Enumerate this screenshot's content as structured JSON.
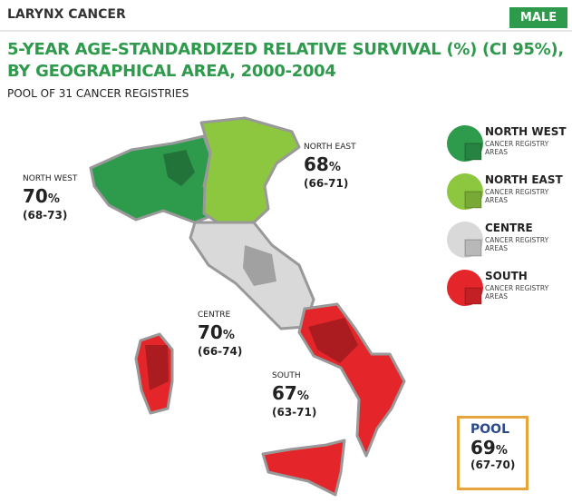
{
  "header": {
    "title": "LARYNX CANCER",
    "badge": "MALE"
  },
  "title_lines": [
    "5-YEAR AGE-STANDARDIZED RELATIVE SURVIVAL (%) (CI 95%),",
    "BY GEOGRAPHICAL AREA, 2000-2004"
  ],
  "subtitle": "POOL OF 31 CANCER REGISTRIES",
  "unit": "%",
  "regions": [
    {
      "name": "NORTH WEST",
      "value": 70,
      "ci": "(68-73)",
      "color": "#2e9a4c"
    },
    {
      "name": "NORTH EAST",
      "value": 68,
      "ci": "(66-71)",
      "color": "#8dc63f"
    },
    {
      "name": "CENTRE",
      "value": 70,
      "ci": "(66-74)",
      "color": "#d9d9d9"
    },
    {
      "name": "SOUTH",
      "value": 67,
      "ci": "(63-71)",
      "color": "#e4262b"
    }
  ],
  "pool": {
    "label": "POOL",
    "value": 69,
    "ci": "(67-70)"
  },
  "legend": {
    "note": "CANCER REGISTRY AREAS",
    "items": [
      "NORTH WEST",
      "NORTH EAST",
      "CENTRE",
      "SOUTH"
    ]
  }
}
